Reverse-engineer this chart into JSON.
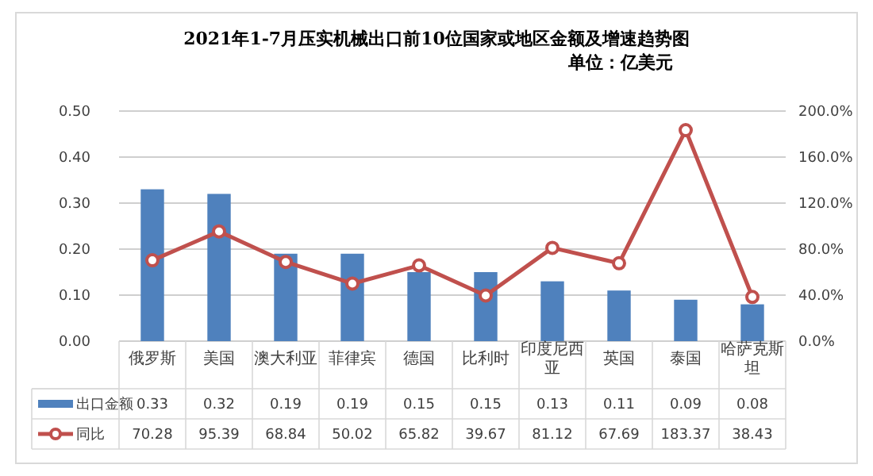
{
  "chart_data": {
    "type": "bar",
    "title": "2021年1-7月压实机械出口前10位国家或地区金额及增速趋势图",
    "subtitle": "单位：亿美元",
    "categories": [
      "俄罗斯",
      "美国",
      "澳大利亚",
      "菲律宾",
      "德国",
      "比利时",
      "印度尼西亚",
      "英国",
      "泰国",
      "哈萨克斯坦"
    ],
    "series": [
      {
        "name": "出口金额",
        "color": "#4f81bd",
        "values": [
          0.33,
          0.32,
          0.19,
          0.19,
          0.15,
          0.15,
          0.13,
          0.11,
          0.09,
          0.08
        ]
      },
      {
        "name": "同比",
        "type": "line",
        "axis": "y2",
        "color": "#c0504d",
        "marker": "circle",
        "values": [
          70.28,
          95.39,
          68.84,
          50.02,
          65.82,
          39.67,
          81.12,
          67.69,
          183.37,
          38.43
        ]
      }
    ],
    "ylim": [
      0,
      0.5
    ],
    "yticks": [
      {
        "value": 0,
        "label": "0.00"
      },
      {
        "value": 0.1,
        "label": "0.10"
      },
      {
        "value": 0.2,
        "label": "0.20"
      },
      {
        "value": 0.3,
        "label": "0.30"
      },
      {
        "value": 0.4,
        "label": "0.40"
      },
      {
        "value": 0.5,
        "label": "0.50"
      }
    ],
    "y2lim": [
      0,
      200
    ],
    "y2ticks": [
      {
        "value": 0,
        "label": "0.0%"
      },
      {
        "value": 40,
        "label": "40.0%"
      },
      {
        "value": 80,
        "label": "80.0%"
      },
      {
        "value": 120,
        "label": "120.0%"
      },
      {
        "value": 160,
        "label": "160.0%"
      },
      {
        "value": 200,
        "label": "200.0%"
      }
    ],
    "grid": "y",
    "legend": "bottom left",
    "data_labels": true
  }
}
